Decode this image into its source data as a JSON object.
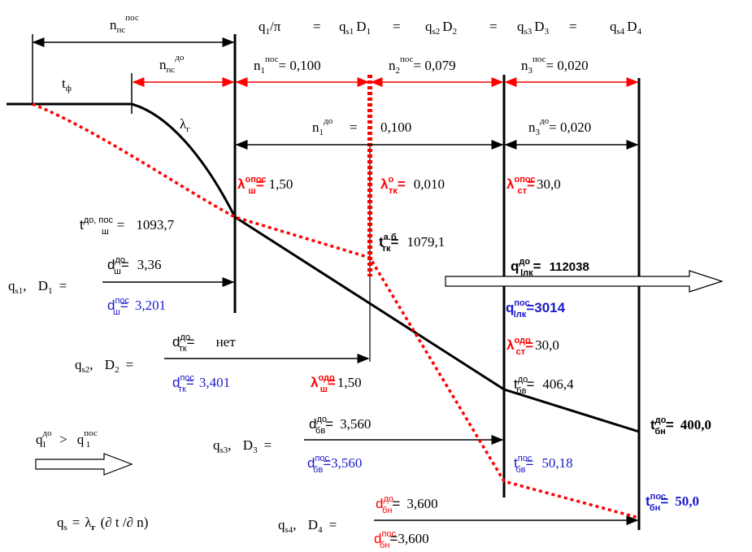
{
  "colors": {
    "black": "#000000",
    "red": "#ff0000",
    "blue": "#1a1acc"
  },
  "top": {
    "npc_pos": {
      "main": "n",
      "sub": "пс",
      "sup": "пос"
    },
    "npc_do": {
      "main": "n",
      "sub": "пс",
      "sup": "до"
    },
    "tf": {
      "main": "t",
      "sub": "ф"
    },
    "lambda_g": {
      "main": "λ",
      "sub": "г"
    },
    "flux_eq": {
      "q_over_pi": "q",
      "q_over_pi_sub": "1",
      "q_over_pi_rest": "/π",
      "eq": "=",
      "terms": [
        {
          "q": "q",
          "sub": "s1",
          "d": "D",
          "dsub": "1"
        },
        {
          "q": "q",
          "sub": "s2",
          "d": "D",
          "dsub": "2"
        },
        {
          "q": "q",
          "sub": "s3",
          "d": "D",
          "dsub": "3"
        },
        {
          "q": "q",
          "sub": "s4",
          "d": "D",
          "dsub": "4"
        }
      ]
    },
    "n1_pos": {
      "main": "n",
      "sub": "1",
      "sup": "пос",
      "val": "= 0,100"
    },
    "n2_pos": {
      "main": "n",
      "sub": "2",
      "sup": "пос",
      "val": "= 0,079"
    },
    "n3_pos": {
      "main": "n",
      "sub": "3",
      "sup": "пос",
      "val": "= 0,020"
    },
    "n1_do": {
      "main": "n",
      "sub": "1",
      "sup": "до",
      "eq": "=",
      "val": "0,100"
    },
    "n3_do": {
      "main": "n",
      "sub": "3",
      "sup": "до",
      "val": "= 0,020"
    }
  },
  "lambdas": {
    "opos_sh": {
      "main": "λ",
      "sup": "опос",
      "sub": "ш",
      "eq": "=",
      "val": "1,50"
    },
    "o_tk": {
      "main": "λ",
      "sup": "о",
      "sub": "тк",
      "eq": "=",
      "val": "0,010"
    },
    "opos_st": {
      "main": "λ",
      "sup": "опос",
      "sub": "ст",
      "eq": "=",
      "val": "30,0"
    },
    "odo_st": {
      "main": "λ",
      "sup": "одо",
      "sub": "ст",
      "eq": "=",
      "val": "30,0"
    },
    "odo_sh": {
      "main": "λ",
      "sup": "одо",
      "sub": "ш",
      "eq": "=",
      "val": "1,50"
    }
  },
  "temps": {
    "t_do_pos_sh": {
      "main": "t",
      "sup": "до, пос",
      "sub": "ш",
      "eq": "=",
      "val": "1093,7"
    },
    "t_ab_tk": {
      "main": "t",
      "sup": "а.б",
      "sub": "тк",
      "eq": "=",
      "val": "1079,1"
    },
    "t_do_bv": {
      "main": "t",
      "sup": "до",
      "sub": "бв",
      "eq": "=",
      "val": "406,4"
    },
    "t_pos_bv": {
      "main": "t",
      "sup": "пос",
      "sub": "бв",
      "eq": "=",
      "val": "50,18"
    },
    "t_do_bn": {
      "main": "t",
      "sup": "до",
      "sub": "бн",
      "eq": "=",
      "val": "400,0"
    },
    "t_pos_bn": {
      "main": "t",
      "sup": "пос",
      "sub": "бн",
      "eq": "=",
      "val": "50,0"
    }
  },
  "heat_flux": {
    "q_do": {
      "main": "q",
      "sup": "до",
      "sub": "lлк",
      "eq": "=",
      "val": "112038"
    },
    "q_pos": {
      "main": "q",
      "sup": "пос",
      "sub": "lлк",
      "eq": "=",
      "val": "3014"
    }
  },
  "diameters": {
    "row1": {
      "q": "q",
      "qsub": "s1",
      "d": "D",
      "dsub": "1",
      "eq": "=",
      "do": {
        "main": "d",
        "sup": "до",
        "sub": "ш",
        "eq": "=",
        "val": "3,36"
      },
      "pos": {
        "main": "d",
        "sup": "пос",
        "sub": "ш",
        "eq": "=",
        "val": "3,201"
      }
    },
    "row2": {
      "q": "q",
      "qsub": "s2",
      "d": "D",
      "dsub": "2",
      "eq": "=",
      "do": {
        "main": "d",
        "sup": "до",
        "sub": "тк",
        "eq": "=",
        "val": "нет"
      },
      "pos": {
        "main": "d",
        "sup": "пос",
        "sub": "тк",
        "eq": "=",
        "val": "3,401"
      }
    },
    "row3": {
      "q": "q",
      "qsub": "s3",
      "d": "D",
      "dsub": "3",
      "eq": "=",
      "do": {
        "main": "d",
        "sup": "до",
        "sub": "бв",
        "eq": "=",
        "val": "3,560"
      },
      "pos": {
        "main": "d",
        "sup": "пос",
        "sub": "бв",
        "eq": "=",
        "val": "3,560"
      }
    },
    "row4": {
      "q": "q",
      "qsub": "s4",
      "d": "D",
      "dsub": "4",
      "eq": "=",
      "do": {
        "main": "d",
        "sup": "до",
        "sub": "бн",
        "eq": "=",
        "val": "3,600"
      },
      "pos": {
        "main": "d",
        "sup": "пос",
        "sub": "бн",
        "eq": "=",
        "val": "3,600"
      }
    }
  },
  "bottom_left": {
    "ineq": {
      "q1": "q",
      "sup1": "до",
      "sub1": "1",
      "gt": ">",
      "q2": "q",
      "sup2": "пос",
      "sub2": "1"
    },
    "fourier": {
      "q": "q",
      "qsub": "s",
      "eq": "=",
      "lam": "λ",
      "lamsub": "г",
      "rest": "(∂ t /∂ n)"
    }
  }
}
